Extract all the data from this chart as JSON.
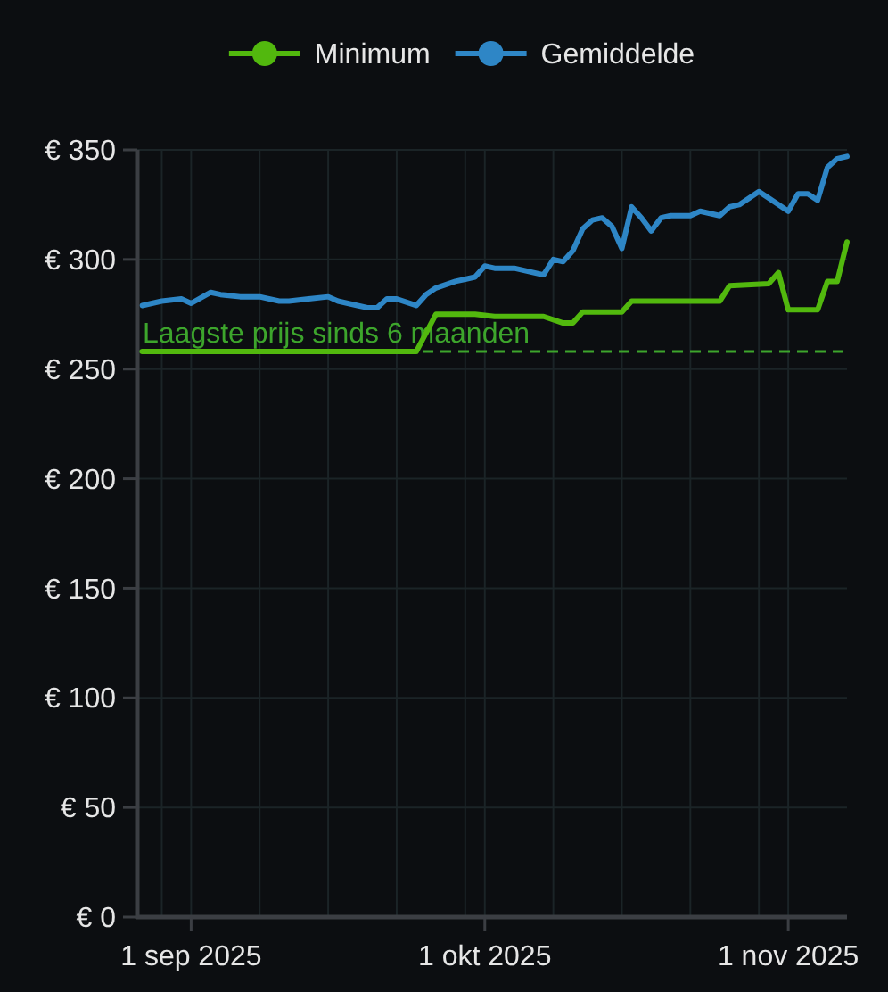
{
  "chart_data": {
    "type": "line",
    "legend": "top",
    "grid": true,
    "xlim": [
      "2025-08-26T12:00",
      "2025-11-07"
    ],
    "xticks": [
      {
        "value": "2025-08-29",
        "label": null
      },
      {
        "value": "2025-09-01",
        "label": "1 sep 2025"
      },
      {
        "value": "2025-09-08",
        "label": null
      },
      {
        "value": "2025-09-15",
        "label": null
      },
      {
        "value": "2025-09-22",
        "label": null
      },
      {
        "value": "2025-09-29",
        "label": null
      },
      {
        "value": "2025-10-01",
        "label": "1 okt 2025"
      },
      {
        "value": "2025-10-08",
        "label": null
      },
      {
        "value": "2025-10-15",
        "label": null
      },
      {
        "value": "2025-10-22",
        "label": null
      },
      {
        "value": "2025-10-29",
        "label": null
      },
      {
        "value": "2025-11-01",
        "label": "1 nov 2025"
      }
    ],
    "ylim": [
      0,
      350
    ],
    "yticks": [
      {
        "value": 0,
        "label": "€ 0"
      },
      {
        "value": 50,
        "label": "€ 50"
      },
      {
        "value": 100,
        "label": "€ 100"
      },
      {
        "value": 150,
        "label": "€ 150"
      },
      {
        "value": 200,
        "label": "€ 200"
      },
      {
        "value": 250,
        "label": "€ 250"
      },
      {
        "value": 300,
        "label": "€ 300"
      },
      {
        "value": 350,
        "label": "€ 350"
      }
    ],
    "ref_lines": [
      {
        "axis": "y",
        "value": 258,
        "label": "Laagste prijs sinds 6 maanden",
        "color": "#3da52c",
        "line_style": "dashed"
      }
    ],
    "series": [
      {
        "name": "Minimum",
        "color": "#52b80e",
        "x": [
          "2025-08-27",
          "2025-09-24",
          "2025-09-26",
          "2025-09-30",
          "2025-10-02",
          "2025-10-07",
          "2025-10-09",
          "2025-10-10",
          "2025-10-11",
          "2025-10-15",
          "2025-10-16",
          "2025-10-25",
          "2025-10-26",
          "2025-10-30",
          "2025-10-31",
          "2025-11-01",
          "2025-11-04",
          "2025-11-05",
          "2025-11-06",
          "2025-11-07"
        ],
        "values": [
          258,
          258,
          275,
          275,
          274,
          274,
          271,
          271,
          276,
          276,
          281,
          281,
          288,
          289,
          294,
          277,
          277,
          290,
          290,
          308
        ]
      },
      {
        "name": "Gemiddelde",
        "color": "#2e86c6",
        "x": [
          "2025-08-27",
          "2025-08-29",
          "2025-08-31",
          "2025-09-01",
          "2025-09-03",
          "2025-09-04",
          "2025-09-06",
          "2025-09-08",
          "2025-09-10",
          "2025-09-11",
          "2025-09-13",
          "2025-09-15",
          "2025-09-16",
          "2025-09-18",
          "2025-09-19",
          "2025-09-20",
          "2025-09-21",
          "2025-09-22",
          "2025-09-24",
          "2025-09-25",
          "2025-09-26",
          "2025-09-28",
          "2025-09-29",
          "2025-09-30",
          "2025-10-01",
          "2025-10-02",
          "2025-10-04",
          "2025-10-05",
          "2025-10-07",
          "2025-10-08",
          "2025-10-09",
          "2025-10-10",
          "2025-10-11",
          "2025-10-12",
          "2025-10-13",
          "2025-10-14",
          "2025-10-15",
          "2025-10-16",
          "2025-10-17",
          "2025-10-18",
          "2025-10-19",
          "2025-10-20",
          "2025-10-22",
          "2025-10-23",
          "2025-10-25",
          "2025-10-26",
          "2025-10-27",
          "2025-10-29",
          "2025-10-30",
          "2025-11-01",
          "2025-11-02",
          "2025-11-03",
          "2025-11-04",
          "2025-11-05",
          "2025-11-06",
          "2025-11-07"
        ],
        "values": [
          279,
          281,
          282,
          280,
          285,
          284,
          283,
          283,
          281,
          281,
          282,
          283,
          281,
          279,
          278,
          278,
          282,
          282,
          279,
          284,
          287,
          290,
          291,
          292,
          297,
          296,
          296,
          295,
          293,
          300,
          299,
          304,
          314,
          318,
          319,
          315,
          305,
          324,
          319,
          313,
          319,
          320,
          320,
          322,
          320,
          324,
          325,
          331,
          328,
          322,
          330,
          330,
          327,
          342,
          346,
          347
        ]
      }
    ]
  }
}
